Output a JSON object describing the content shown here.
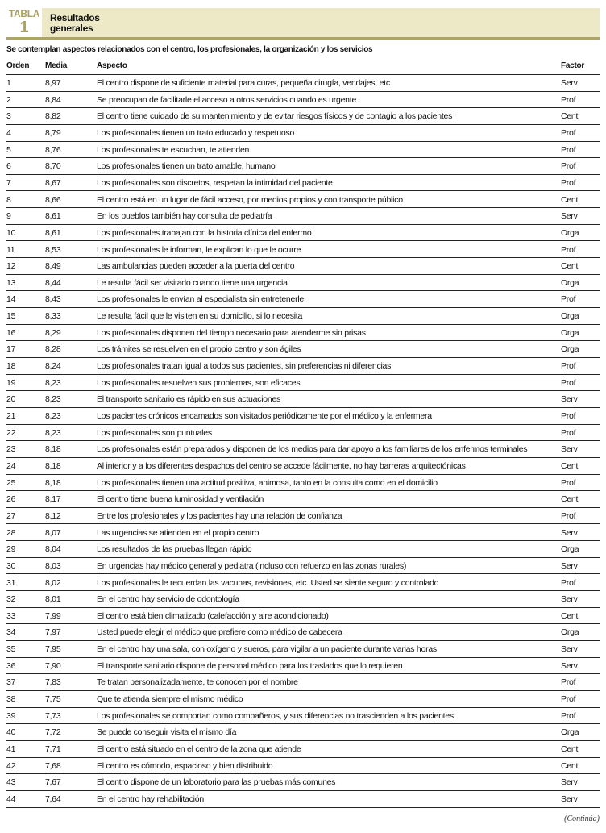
{
  "header": {
    "label": "TABLA",
    "number": "1",
    "title_line1": "Resultados",
    "title_line2": "generales"
  },
  "colors": {
    "accent": "#aea466",
    "band": "#ede9c6"
  },
  "subtitle": "Se contemplan aspectos relacionados con el centro, los profesionales, la organización y los servicios",
  "columns": [
    "Orden",
    "Media",
    "Aspecto",
    "Factor"
  ],
  "rows": [
    [
      "1",
      "8,97",
      "El centro dispone de suficiente material para curas, pequeña cirugía, vendajes, etc.",
      "Serv"
    ],
    [
      "2",
      "8,84",
      "Se preocupan de facilitarle el acceso a otros servicios cuando es urgente",
      "Prof"
    ],
    [
      "3",
      "8,82",
      "El centro tiene cuidado de su mantenimiento y de evitar riesgos físicos y de contagio a los pacientes",
      "Cent"
    ],
    [
      "4",
      "8,79",
      "Los profesionales tienen un trato educado y respetuoso",
      "Prof"
    ],
    [
      "5",
      "8,76",
      "Los profesionales te escuchan, te atienden",
      "Prof"
    ],
    [
      "6",
      "8,70",
      "Los profesionales tienen un trato amable, humano",
      "Prof"
    ],
    [
      "7",
      "8,67",
      "Los profesionales son discretos, respetan la intimidad del paciente",
      "Prof"
    ],
    [
      "8",
      "8,66",
      "El centro está en un lugar de fácil acceso, por medios propios y con transporte público",
      "Cent"
    ],
    [
      "9",
      "8,61",
      "En los pueblos también hay consulta de pediatría",
      "Serv"
    ],
    [
      "10",
      "8,61",
      "Los profesionales trabajan con la historia clínica del enfermo",
      "Orga"
    ],
    [
      "11",
      "8,53",
      "Los profesionales le informan, le explican lo que le ocurre",
      "Prof"
    ],
    [
      "12",
      "8,49",
      "Las ambulancias pueden acceder a la puerta del centro",
      "Cent"
    ],
    [
      "13",
      "8,44",
      "Le resulta fácil ser visitado cuando tiene una urgencia",
      "Orga"
    ],
    [
      "14",
      "8,43",
      "Los profesionales le envían al especialista sin entretenerle",
      "Prof"
    ],
    [
      "15",
      "8,33",
      "Le resulta fácil que le visiten en su domicilio, si lo necesita",
      "Orga"
    ],
    [
      "16",
      "8,29",
      "Los profesionales disponen del tiempo necesario para atenderme sin prisas",
      "Orga"
    ],
    [
      "17",
      "8,28",
      "Los trámites se resuelven en el propio centro y son ágiles",
      "Orga"
    ],
    [
      "18",
      "8,24",
      "Los profesionales tratan igual a todos sus pacientes, sin preferencias ni diferencias",
      "Prof"
    ],
    [
      "19",
      "8,23",
      "Los profesionales resuelven sus problemas, son eficaces",
      "Prof"
    ],
    [
      "20",
      "8,23",
      "El transporte sanitario es rápido en sus actuaciones",
      "Serv"
    ],
    [
      "21",
      "8,23",
      "Los pacientes crónicos encamados son visitados periódicamente por el médico y la enfermera",
      "Prof"
    ],
    [
      "22",
      "8,23",
      "Los profesionales son puntuales",
      "Prof"
    ],
    [
      "23",
      "8,18",
      "Los profesionales están preparados y disponen de los medios para dar apoyo a los familiares de los enfermos terminales",
      "Serv"
    ],
    [
      "24",
      "8,18",
      "Al interior y a los diferentes despachos del centro se accede fácilmente, no hay barreras arquitectónicas",
      "Cent"
    ],
    [
      "25",
      "8,18",
      "Los profesionales tienen una actitud positiva, animosa, tanto en la consulta como en el domicilio",
      "Prof"
    ],
    [
      "26",
      "8,17",
      "El centro tiene buena luminosidad y ventilación",
      "Cent"
    ],
    [
      "27",
      "8,12",
      "Entre los profesionales y los pacientes hay una relación de confianza",
      "Prof"
    ],
    [
      "28",
      "8,07",
      "Las urgencias se atienden en el propio centro",
      "Serv"
    ],
    [
      "29",
      "8,04",
      "Los resultados de las pruebas llegan rápido",
      "Orga"
    ],
    [
      "30",
      "8,03",
      "En urgencias hay médico general y pediatra (incluso con refuerzo en las zonas rurales)",
      "Serv"
    ],
    [
      "31",
      "8,02",
      "Los profesionales le recuerdan las vacunas, revisiones, etc. Usted se siente seguro y controlado",
      "Prof"
    ],
    [
      "32",
      "8,01",
      "En el centro hay servicio de odontología",
      "Serv"
    ],
    [
      "33",
      "7,99",
      "El centro está bien climatizado (calefacción y aire acondicionado)",
      "Cent"
    ],
    [
      "34",
      "7,97",
      "Usted puede elegir el médico que prefiere como médico de cabecera",
      "Orga"
    ],
    [
      "35",
      "7,95",
      "En el centro hay una sala, con oxígeno y sueros, para vigilar a un paciente durante varias horas",
      "Serv"
    ],
    [
      "36",
      "7,90",
      "El transporte sanitario dispone de personal médico para los traslados que lo requieren",
      "Serv"
    ],
    [
      "37",
      "7,83",
      "Te tratan personalizadamente, te conocen por el nombre",
      "Prof"
    ],
    [
      "38",
      "7,75",
      "Que te atienda siempre el mismo médico",
      "Prof"
    ],
    [
      "39",
      "7,73",
      "Los profesionales se comportan como compañeros, y sus diferencias no trascienden a los pacientes",
      "Prof"
    ],
    [
      "40",
      "7,72",
      "Se puede conseguir visita el mismo día",
      "Orga"
    ],
    [
      "41",
      "7,71",
      "El centro está situado en el centro de la zona que atiende",
      "Cent"
    ],
    [
      "42",
      "7,68",
      "El centro es cómodo, espacioso y bien distribuido",
      "Cent"
    ],
    [
      "43",
      "7,67",
      "El centro dispone de un laboratorio para las pruebas más comunes",
      "Serv"
    ],
    [
      "44",
      "7,64",
      "En el centro hay rehabilitación",
      "Serv"
    ]
  ],
  "footer": "(Continúa)"
}
